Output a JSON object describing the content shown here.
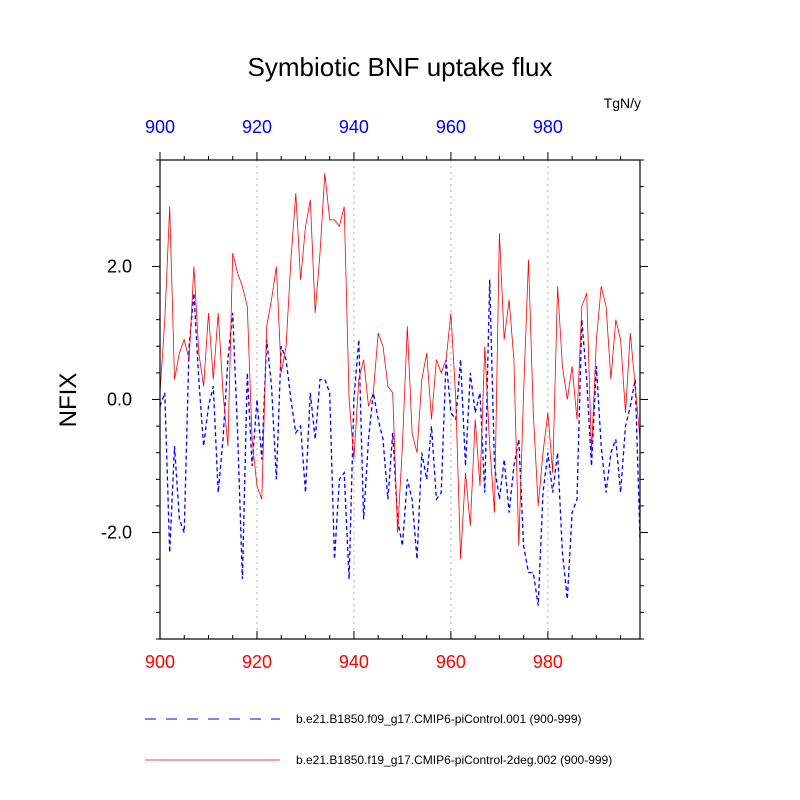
{
  "chart_data": {
    "type": "line",
    "title": "Symbiotic BNF uptake flux",
    "ylabel": "NFIX",
    "units": "TgN/y",
    "xlim": [
      900,
      999
    ],
    "ylim": [
      -3.6,
      3.6
    ],
    "x_ticks": [
      900,
      920,
      940,
      960,
      980
    ],
    "x_tick_labels": [
      "900",
      "920",
      "940",
      "960",
      "980"
    ],
    "y_ticks": [
      -2.0,
      0.0,
      2.0
    ],
    "y_tick_labels": [
      "-2.0",
      "0.0",
      "2.0"
    ],
    "bottom_axis_color": "#ff0000",
    "top_axis_color": "#0000ff",
    "x_start": 900,
    "series": [
      {
        "name": "b.e21.B1850.f09_g17.CMIP6-piControl.001 (900-999)",
        "color": "#0000ff",
        "style": "dashed",
        "values": [
          -0.1,
          0.1,
          -2.3,
          -0.7,
          -1.8,
          -2.0,
          0.8,
          1.6,
          0.3,
          -0.7,
          -0.1,
          0.2,
          -1.4,
          -0.6,
          0.6,
          1.3,
          -0.5,
          -2.7,
          0.4,
          -1.0,
          0.0,
          -0.9,
          0.9,
          0.2,
          -1.2,
          0.8,
          0.6,
          0.0,
          -0.5,
          -0.4,
          -1.4,
          0.1,
          -0.6,
          0.3,
          0.3,
          0.1,
          -2.4,
          -1.2,
          -1.1,
          -2.7,
          0.0,
          0.9,
          -1.8,
          -0.6,
          0.1,
          -0.3,
          -0.6,
          -1.5,
          -0.5,
          -1.8,
          -2.2,
          -1.2,
          -1.5,
          -2.4,
          -0.8,
          -1.2,
          -0.4,
          -1.5,
          -1.4,
          0.6,
          -0.2,
          -0.3,
          0.6,
          -1.0,
          0.4,
          -0.2,
          0.1,
          -1.4,
          1.8,
          -1.0,
          -1.5,
          -0.9,
          -1.7,
          -1.0,
          -0.6,
          -2.2,
          -2.6,
          -2.6,
          -3.1,
          -1.4,
          -0.8,
          -1.4,
          -0.8,
          -2.3,
          -3.0,
          -1.7,
          -1.5,
          1.2,
          0.3,
          -1.0,
          0.5,
          -0.7,
          -1.4,
          -0.8,
          -0.6,
          -1.4,
          -0.4,
          -0.1,
          0.3,
          -2.1
        ]
      },
      {
        "name": "b.e21.B1850.f19_g17.CMIP6-piControl-2deg.002 (900-999)",
        "color": "#ff0000",
        "style": "solid",
        "values": [
          0.1,
          1.2,
          2.9,
          0.3,
          0.7,
          0.9,
          0.6,
          2.0,
          0.7,
          0.2,
          1.3,
          0.3,
          1.3,
          0.1,
          -0.7,
          2.2,
          1.9,
          1.7,
          1.4,
          -0.6,
          -1.3,
          -1.5,
          1.1,
          1.5,
          2.0,
          0.4,
          0.8,
          2.1,
          3.1,
          1.8,
          2.6,
          3.0,
          1.3,
          2.2,
          3.4,
          2.7,
          2.7,
          2.6,
          2.9,
          0.0,
          -0.9,
          0.3,
          0.6,
          -0.1,
          0.1,
          1.0,
          0.8,
          0.2,
          0.1,
          -2.0,
          -0.7,
          1.1,
          -0.5,
          -0.8,
          0.3,
          0.7,
          -0.3,
          0.6,
          0.4,
          0.6,
          1.3,
          0.0,
          -2.4,
          -1.1,
          -1.9,
          -0.3,
          -1.3,
          0.8,
          -0.7,
          -1.7,
          2.5,
          0.9,
          1.5,
          0.6,
          -2.2,
          0.1,
          2.1,
          -0.2,
          -1.6,
          -0.8,
          -0.2,
          -1.1,
          1.7,
          0.5,
          0.0,
          0.5,
          -0.3,
          1.4,
          1.6,
          -0.8,
          0.9,
          1.7,
          1.4,
          0.3,
          1.2,
          0.9,
          -0.2,
          1.0,
          0.2,
          -0.6
        ]
      }
    ]
  }
}
